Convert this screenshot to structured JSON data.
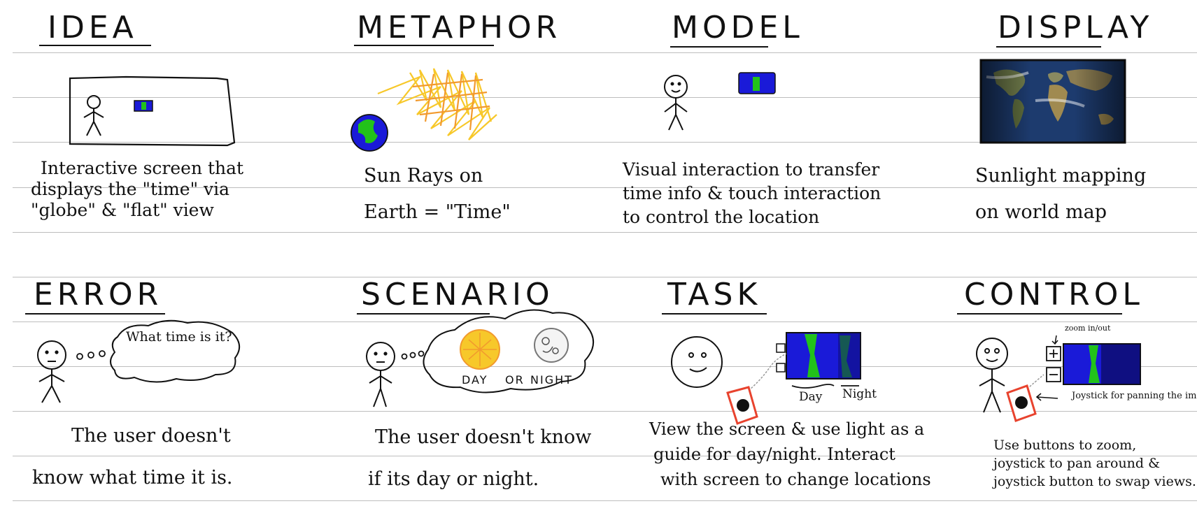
{
  "panels": {
    "idea": {
      "title": "IDEA",
      "caption": [
        "Interactive screen that",
        "displays the \"time\" via",
        "\"globe\" & \"flat\" view"
      ]
    },
    "metaphor": {
      "title": "METAPHOR",
      "caption": [
        "Sun Rays on",
        "Earth = \"Time\""
      ]
    },
    "model": {
      "title": "MODEL",
      "caption": [
        "Visual interaction to transfer",
        "time info & touch interaction",
        "to control the location"
      ]
    },
    "display": {
      "title": "DISPLAY",
      "caption": [
        "Sunlight mapping",
        "on world map"
      ]
    },
    "error": {
      "title": "ERROR",
      "bubble_text": [
        "What time",
        "is it?"
      ],
      "caption": [
        "The user doesn't",
        "know what time it is."
      ]
    },
    "scenario": {
      "title": "SCENARIO",
      "bubble_labels": [
        "DAY",
        "OR",
        "NIGHT"
      ],
      "caption": [
        "The user doesn't know",
        "if its day or night."
      ]
    },
    "task": {
      "title": "TASK",
      "screen_labels": [
        "Day",
        "Night"
      ],
      "caption": [
        "View the screen & use light as a",
        "guide for day/night. Interact",
        "with screen to change locations"
      ]
    },
    "control": {
      "title": "CONTROL",
      "zoom_note": [
        "zoom",
        "in/out"
      ],
      "joystick_note": [
        "Joystick for",
        "panning the image"
      ],
      "caption": [
        "Use buttons to zoom,",
        "joystick to pan around &",
        "joystick button to swap views."
      ]
    }
  },
  "colors": {
    "ink": "#111111",
    "rule": "#bdbdbd",
    "ocean_blue": "#1a1ad8",
    "land_green": "#22c21a",
    "sun_yellow": "#f7c82a",
    "sun_orange": "#f29a2e",
    "joystick_red": "#e8432e"
  }
}
